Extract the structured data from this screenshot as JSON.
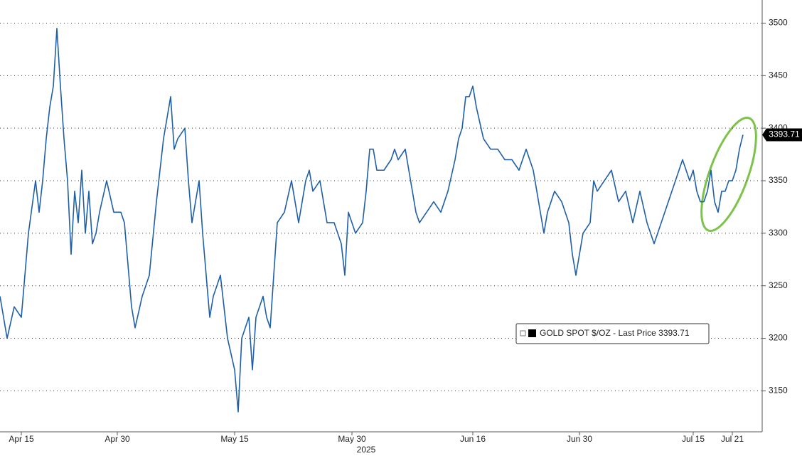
{
  "chart_data": {
    "type": "line",
    "xlabel": "2025",
    "categories": [
      null,
      null,
      null,
      null,
      null,
      null,
      "Apr 15",
      null,
      null,
      null,
      null,
      null,
      null,
      null,
      null,
      null,
      null,
      null,
      null,
      null,
      null,
      null,
      null,
      null,
      null,
      null,
      null,
      null,
      null,
      null,
      null,
      null,
      null,
      "Apr 30",
      null,
      null,
      null,
      null,
      null,
      null,
      null,
      null,
      null,
      null,
      null,
      null,
      null,
      null,
      null,
      null,
      null,
      null,
      null,
      null,
      null,
      null,
      null,
      null,
      null,
      null,
      null,
      null,
      null,
      null,
      null,
      null,
      "May 15",
      null,
      null,
      null,
      null,
      null,
      null,
      null,
      null,
      null,
      null,
      null,
      null,
      null,
      null,
      null,
      null,
      null,
      null,
      null,
      null,
      null,
      null,
      null,
      null,
      null,
      null,
      null,
      null,
      null,
      null,
      null,
      null,
      "May 30",
      null,
      null,
      null,
      null,
      null,
      null,
      null,
      null,
      null,
      null,
      null,
      null,
      null,
      null,
      null,
      null,
      null,
      null,
      null,
      null,
      null,
      null,
      null,
      null,
      null,
      null,
      null,
      null,
      null,
      null,
      null,
      null,
      null,
      "Jun 16",
      null,
      null,
      null,
      null,
      null,
      null,
      null,
      null,
      null,
      null,
      null,
      null,
      null,
      null,
      null,
      null,
      null,
      null,
      null,
      null,
      null,
      null,
      null,
      null,
      null,
      null,
      null,
      null,
      null,
      "Jun 30",
      null,
      null,
      null,
      null,
      null,
      null,
      null,
      null,
      null,
      null,
      null,
      null,
      null,
      null,
      null,
      null,
      null,
      null,
      null,
      null,
      null,
      null,
      null,
      null,
      null,
      null,
      null,
      null,
      null,
      null,
      null,
      "Jul 15",
      null,
      null,
      null,
      null,
      null,
      null,
      null,
      null,
      null,
      null,
      "Jul 21",
      null,
      null,
      null
    ],
    "series": [
      {
        "name": "GOLD SPOT $/OZ - Last Price 3393.71",
        "color": "#1f5fa8",
        "values": [
          3240,
          3220,
          3200,
          3215,
          3230,
          3225,
          3220,
          3260,
          3300,
          3325,
          3350,
          3320,
          3350,
          3390,
          3420,
          3440,
          3495,
          3440,
          3390,
          3350,
          3280,
          3340,
          3310,
          3360,
          3300,
          3340,
          3290,
          3300,
          3320,
          3335,
          3350,
          3335,
          3320,
          3320,
          3320,
          3310,
          3270,
          3230,
          3210,
          3225,
          3240,
          3250,
          3260,
          3295,
          3330,
          3360,
          3390,
          3410,
          3430,
          3380,
          3390,
          3395,
          3400,
          3350,
          3310,
          3330,
          3350,
          3300,
          3260,
          3220,
          3240,
          3250,
          3260,
          3230,
          3200,
          3185,
          3170,
          3130,
          3200,
          3210,
          3220,
          3170,
          3220,
          3230,
          3240,
          3220,
          3210,
          3260,
          3310,
          3315,
          3320,
          3335,
          3350,
          3330,
          3310,
          3330,
          3350,
          3360,
          3340,
          3345,
          3350,
          3330,
          3310,
          3310,
          3310,
          3300,
          3290,
          3260,
          3320,
          3310,
          3300,
          3305,
          3310,
          3340,
          3380,
          3380,
          3360,
          3360,
          3360,
          3365,
          3370,
          3380,
          3370,
          3375,
          3380,
          3360,
          3340,
          3320,
          3310,
          3315,
          3320,
          3325,
          3330,
          3325,
          3320,
          3330,
          3340,
          3355,
          3370,
          3390,
          3400,
          3430,
          3430,
          3440,
          3420,
          3405,
          3390,
          3385,
          3380,
          3380,
          3380,
          3375,
          3370,
          3370,
          3370,
          3365,
          3360,
          3370,
          3380,
          3370,
          3360,
          3340,
          3320,
          3300,
          3320,
          3330,
          3340,
          3335,
          3330,
          3320,
          3310,
          3280,
          3260,
          3280,
          3300,
          3305,
          3310,
          3350,
          3340,
          3345,
          3350,
          3355,
          3360,
          3345,
          3330,
          3335,
          3340,
          3325,
          3310,
          3325,
          3340,
          3325,
          3310,
          3300,
          3290,
          3300,
          3310,
          3320,
          3330,
          3340,
          3350,
          3360,
          3370,
          3360,
          3350,
          3360,
          3340,
          3330,
          3330,
          3340,
          3360,
          3330,
          3320,
          3340,
          3340,
          3350,
          3350,
          3360,
          3380,
          3393.71
        ]
      }
    ],
    "last_price": 3393.71,
    "ylim": [
      3111,
      3522
    ],
    "yticks": [
      3150,
      3200,
      3250,
      3300,
      3350,
      3400,
      3450,
      3500
    ],
    "grid": true
  }
}
